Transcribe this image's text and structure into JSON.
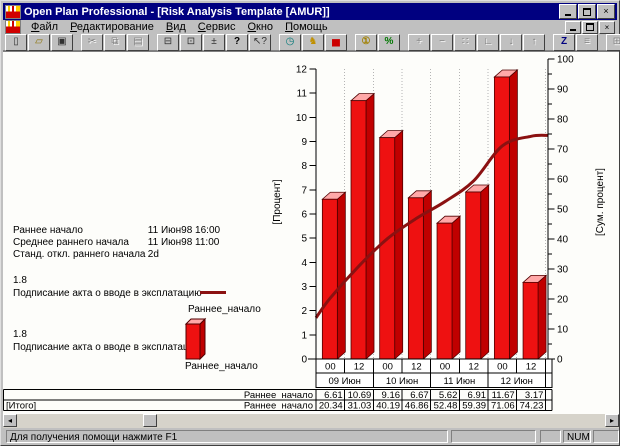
{
  "window": {
    "title": "Open Plan Professional - [Risk Analysis Template [AMUR]]",
    "icons": {
      "close": "×"
    }
  },
  "menu": {
    "items": [
      "Файл",
      "Редактирование",
      "Вид",
      "Сервис",
      "Окно",
      "Помощь"
    ]
  },
  "toolbar": {
    "groups": [
      [
        {
          "name": "new-document",
          "glyph": "▯",
          "color": "#303030"
        },
        {
          "name": "open-folder",
          "glyph": "▱",
          "color": "#8a7000"
        },
        {
          "name": "save",
          "glyph": "▣",
          "color": "#303030"
        }
      ],
      [
        {
          "name": "cut",
          "glyph": "✂",
          "disabled": true
        },
        {
          "name": "copy",
          "glyph": "⧉",
          "disabled": true
        },
        {
          "name": "paste",
          "glyph": "▤",
          "disabled": true
        }
      ],
      [
        {
          "name": "print",
          "glyph": "⊟",
          "color": "#303030"
        },
        {
          "name": "print-preview",
          "glyph": "⊡",
          "color": "#303030"
        },
        {
          "name": "insert-plusminus",
          "glyph": "±",
          "color": "#303030"
        },
        {
          "name": "help",
          "glyph": "?",
          "color": "#000000",
          "bold": true
        },
        {
          "name": "context-help",
          "glyph": "↖?",
          "color": "#303030"
        }
      ],
      [
        {
          "name": "time-analysis-clock",
          "glyph": "◷",
          "color": "#007878"
        },
        {
          "name": "resource-analysis-bird",
          "glyph": "♞",
          "color": "#c09000"
        },
        {
          "name": "risk-histogram",
          "glyph": "▅",
          "color": "#cc0000"
        }
      ],
      [
        {
          "name": "cost-coin",
          "glyph": "①",
          "color": "#a08000",
          "bold": true
        },
        {
          "name": "percent-complete",
          "glyph": "%",
          "color": "#007800",
          "bold": true
        }
      ],
      [
        {
          "name": "add-activity",
          "glyph": "+",
          "disabled": true
        },
        {
          "name": "remove-activity",
          "glyph": "−",
          "disabled": true
        },
        {
          "name": "link-activities",
          "glyph": "∷",
          "disabled": true
        },
        {
          "name": "step-indent",
          "glyph": "∟",
          "disabled": true
        },
        {
          "name": "move-down",
          "glyph": "↓",
          "disabled": true
        },
        {
          "name": "move-up",
          "glyph": "↑",
          "disabled": true
        }
      ],
      [
        {
          "name": "sort-z",
          "glyph": "Z",
          "color": "#000080",
          "bold": true
        },
        {
          "name": "notes",
          "glyph": "≡",
          "disabled": true
        }
      ],
      [
        {
          "name": "window-layout-a",
          "glyph": "⊞",
          "disabled": true
        },
        {
          "name": "window-layout-b",
          "glyph": "⊠",
          "disabled": true
        }
      ]
    ]
  },
  "info_panel": {
    "rows": [
      {
        "label": "Раннее начало",
        "value": "11 Июн98 16:00"
      },
      {
        "label": "Среднее раннего начала",
        "value": "11 Июн98 11:00"
      },
      {
        "label": "Станд. откл.  раннего начала",
        "value": "2d"
      }
    ]
  },
  "legend": {
    "entries": [
      {
        "value": "1.8",
        "description": "Подписание акта о вводе в эксплатацию",
        "series": "Раннее_начало",
        "marker": "line"
      },
      {
        "value": "1.8",
        "description": "Подписание акта о вводе в эксплатацию",
        "series": "Раннее_начало",
        "marker": "bar"
      }
    ]
  },
  "chart_data": {
    "type": "bar+line",
    "categories": [
      "00",
      "12",
      "00",
      "12",
      "00",
      "12",
      "00",
      "12"
    ],
    "date_groups": [
      "09 Июн",
      "10 Июн",
      "11 Июн",
      "12 Июн"
    ],
    "bar_series": {
      "name": "Раннее_начало",
      "values": [
        6.61,
        10.69,
        9.16,
        6.67,
        5.62,
        6.91,
        11.67,
        3.17
      ],
      "color": "#ee1111",
      "top_color": "#ffa8a8",
      "side_color": "#c00000"
    },
    "line_series": {
      "name": "Раннее_начало",
      "values": [
        20.34,
        31.03,
        40.19,
        46.86,
        52.48,
        59.39,
        71.06,
        74.23
      ],
      "start_value": 13.73,
      "color": "#8b1111"
    },
    "ylabel_left": "[Процент]",
    "ylim_left": [
      0,
      12
    ],
    "ytick_left": 1,
    "ylabel_right": "[Сум. процент]",
    "ylim_right": [
      0,
      100
    ],
    "ytick_right": 10,
    "ytick_right_minor": 5,
    "grid": "dotted-vertical",
    "legend_position": "left"
  },
  "table": {
    "rows": [
      {
        "row_label": "",
        "series_label": "Раннее_начало",
        "values_ref": "bar_series"
      },
      {
        "row_label": "[Итого]",
        "series_label": "Раннее_начало",
        "values_ref": "line_series"
      }
    ]
  },
  "statusbar": {
    "message": "Для получения помощи нажмите F1",
    "keyboard_indicator": "NUM"
  },
  "scrollbar": {
    "left_glyph": "◂",
    "right_glyph": "▸"
  }
}
